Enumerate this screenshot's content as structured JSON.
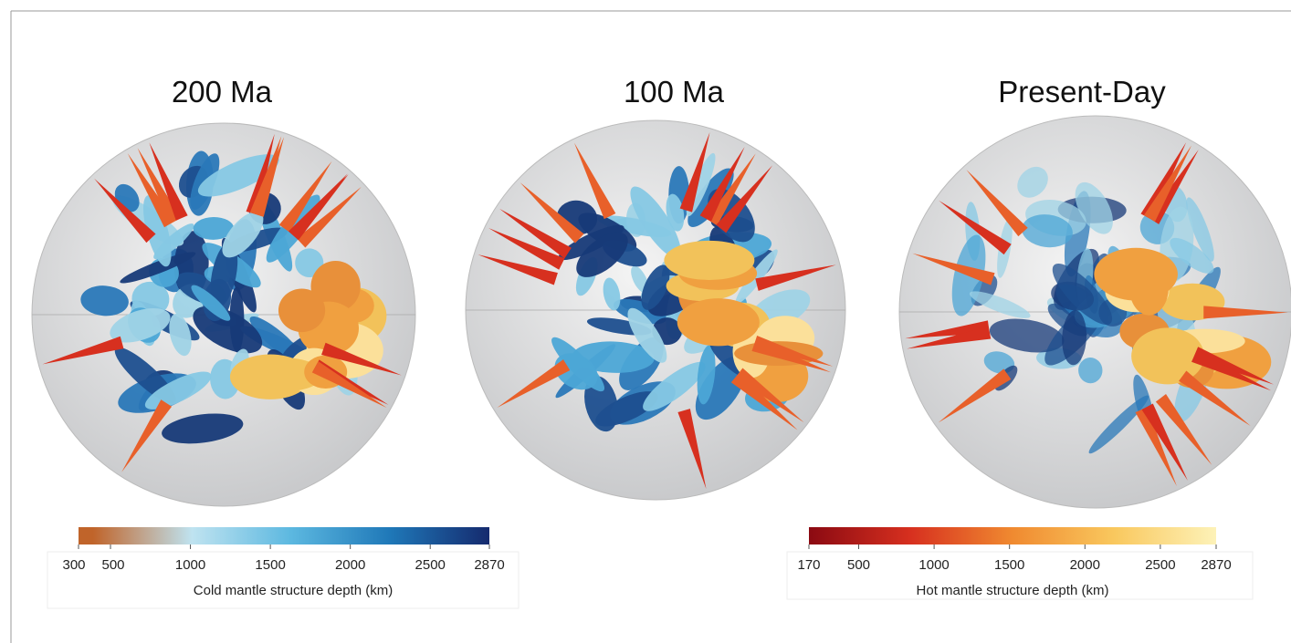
{
  "panels": [
    {
      "title": "200 Ma"
    },
    {
      "title": "100 Ma"
    },
    {
      "title": "Present-Day"
    }
  ],
  "chart_data": [
    {
      "type": "colorbar",
      "xlabel": "Cold mantle structure depth (km)",
      "xlim": [
        300,
        2870
      ],
      "xticks": [
        300,
        500,
        1000,
        1500,
        2000,
        2500,
        2870
      ],
      "colors": [
        "#c0642a",
        "#c0642a",
        "#bfe3f0",
        "#5cb8e0",
        "#1f78b8",
        "#152a6e"
      ]
    },
    {
      "type": "colorbar",
      "xlabel": "Hot mantle structure depth (km)",
      "xlim": [
        170,
        2870
      ],
      "xticks": [
        170,
        500,
        1000,
        1500,
        2000,
        2500,
        2870
      ],
      "colors": [
        "#8b0a12",
        "#d7301f",
        "#f08a30",
        "#f9c85e",
        "#fdf2b8"
      ]
    }
  ]
}
